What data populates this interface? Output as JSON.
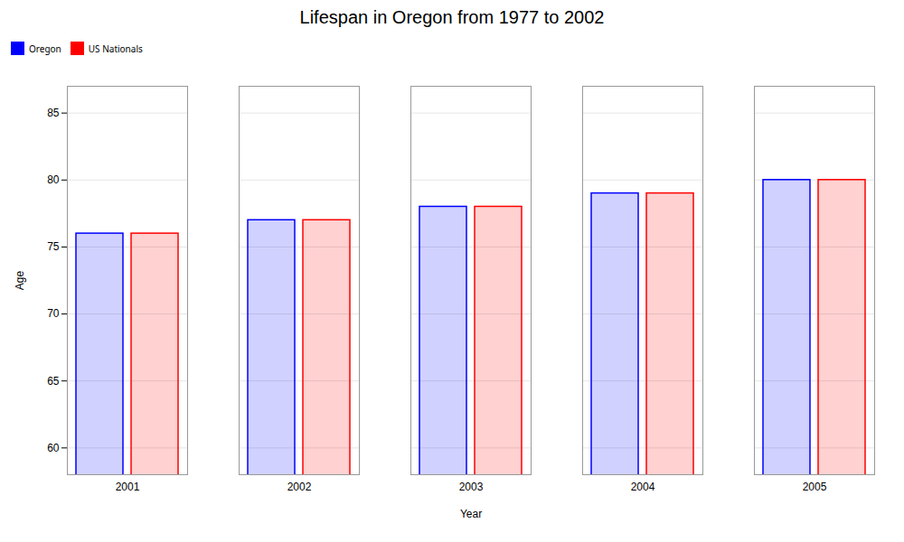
{
  "chart_data": {
    "type": "bar",
    "title": "Lifespan in Oregon from 1977 to 2002",
    "xlabel": "Year",
    "ylabel": "Age",
    "categories": [
      "2001",
      "2002",
      "2003",
      "2004",
      "2005"
    ],
    "series": [
      {
        "name": "Oregon",
        "color": "#0000ff",
        "values": [
          76,
          77,
          78,
          79,
          80
        ]
      },
      {
        "name": "US Nationals",
        "color": "#ff0000",
        "values": [
          76,
          77,
          78,
          79,
          80
        ]
      }
    ],
    "ylim": [
      58,
      87
    ],
    "yticks": [
      60,
      65,
      70,
      75,
      80,
      85
    ],
    "grid": true,
    "legend": "top"
  }
}
